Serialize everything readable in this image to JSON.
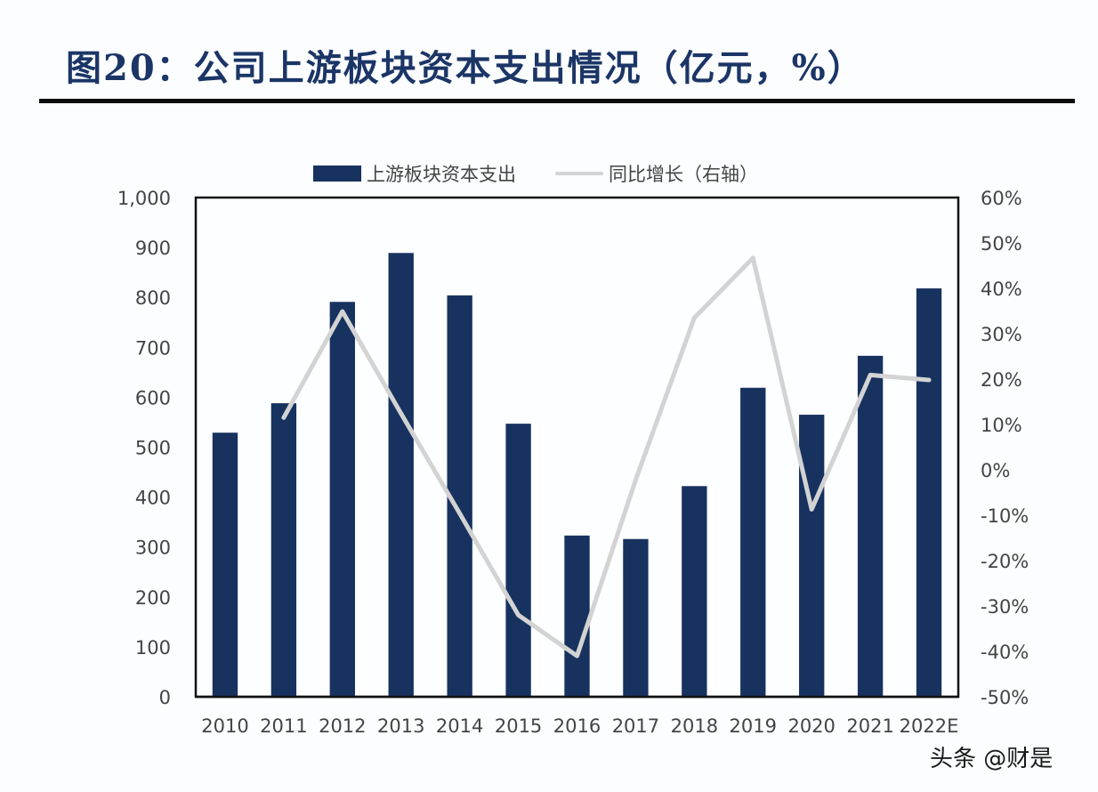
{
  "header": {
    "title": "图20：公司上游板块资本支出情况（亿元，%）"
  },
  "watermark": "头条 @财是",
  "colors": {
    "bar": "#17325f",
    "line": "#d3d3d3",
    "title": "#1b3566",
    "axis_text": "#444444"
  },
  "chart_data": {
    "type": "bar",
    "title": "图20：公司上游板块资本支出情况（亿元，%）",
    "categories": [
      "2010",
      "2011",
      "2012",
      "2013",
      "2014",
      "2015",
      "2016",
      "2017",
      "2018",
      "2019",
      "2020",
      "2021",
      "2022E"
    ],
    "series": [
      {
        "name": "上游板块资本支出",
        "type": "bar",
        "axis": "left",
        "values": [
          529,
          588,
          791,
          889,
          804,
          547,
          323,
          316,
          422,
          619,
          565,
          683,
          818
        ]
      },
      {
        "name": "同比增长（右轴）",
        "type": "line",
        "axis": "right",
        "values": [
          null,
          11.5,
          34.9,
          12.4,
          -9.6,
          -32.0,
          -41.0,
          -2.2,
          33.5,
          46.7,
          -8.7,
          20.9,
          19.8
        ]
      }
    ],
    "left_axis": {
      "ylim": [
        0,
        1000
      ],
      "ticks": [
        0,
        100,
        200,
        300,
        400,
        500,
        600,
        700,
        800,
        900,
        1000
      ],
      "tick_labels": [
        "0",
        "100",
        "200",
        "300",
        "400",
        "500",
        "600",
        "700",
        "800",
        "900",
        "1,000"
      ]
    },
    "right_axis": {
      "ylim": [
        -50,
        60
      ],
      "ticks": [
        -50,
        -40,
        -30,
        -20,
        -10,
        0,
        10,
        20,
        30,
        40,
        50,
        60
      ],
      "tick_labels": [
        "-50%",
        "-40%",
        "-30%",
        "-20%",
        "-10%",
        "0%",
        "10%",
        "20%",
        "30%",
        "40%",
        "50%",
        "60%"
      ]
    },
    "xlabel": "",
    "ylabel": "",
    "grid": false,
    "legend": {
      "position": "top-center",
      "entries": [
        "上游板块资本支出",
        "同比增长（右轴）"
      ]
    }
  }
}
